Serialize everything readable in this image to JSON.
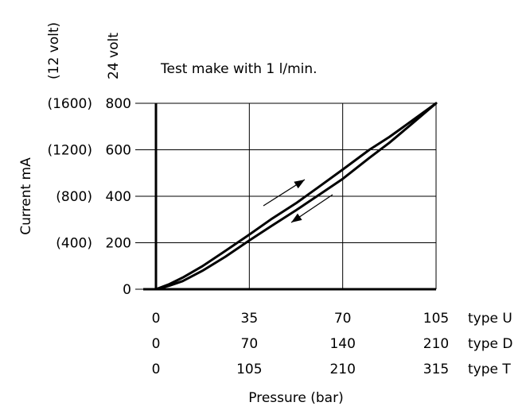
{
  "chart_data": {
    "type": "line",
    "title": "Test make with 1 l/min.",
    "xlabel": "Pressure (bar)",
    "ylabel": "Current mA",
    "xlim": [
      0,
      105
    ],
    "ylim": [
      0,
      800
    ],
    "grid": true,
    "y_ticks": [
      0,
      200,
      400,
      600,
      800
    ],
    "y_tick_labels_12v": [
      "(400)",
      "(800)",
      "(1200)",
      "(1600)"
    ],
    "y_column_headers": [
      "(12 volt)",
      "24 volt"
    ],
    "x_scales": [
      {
        "ticks": [
          "0",
          "35",
          "70",
          "105"
        ],
        "label": "type U"
      },
      {
        "ticks": [
          "0",
          "70",
          "140",
          "210"
        ],
        "label": "type D"
      },
      {
        "ticks": [
          "0",
          "105",
          "210",
          "315"
        ],
        "label": "type T"
      }
    ],
    "series": [
      {
        "direction": "increasing",
        "x": [
          0,
          5,
          10,
          17.5,
          26,
          35,
          43,
          52.5,
          61,
          70,
          80,
          87.5,
          96,
          105
        ],
        "y": [
          0,
          22,
          50,
          100,
          165,
          235,
          300,
          370,
          440,
          515,
          600,
          655,
          725,
          800
        ]
      },
      {
        "direction": "decreasing",
        "x": [
          0,
          5,
          10,
          17.5,
          26,
          35,
          43,
          52.5,
          61,
          70,
          80,
          87.5,
          96,
          105
        ],
        "y": [
          0,
          15,
          35,
          80,
          140,
          210,
          270,
          340,
          405,
          475,
          565,
          630,
          712,
          800
        ]
      }
    ]
  }
}
